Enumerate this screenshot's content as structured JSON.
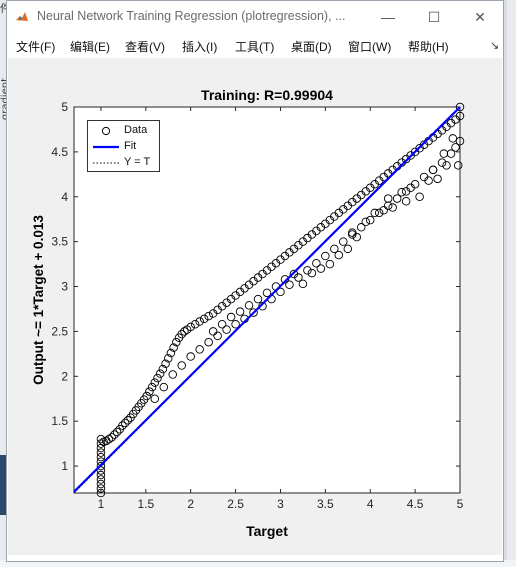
{
  "window": {
    "title": "Neural Network Training Regression (plotregression), ...",
    "controls": {
      "minimize": "—",
      "maximize": "☐",
      "close": "✕"
    }
  },
  "background": {
    "left_text": "gradient",
    "left_marker": "件"
  },
  "menu": {
    "items": [
      {
        "label": "文件(F)"
      },
      {
        "label": "编辑(E)"
      },
      {
        "label": "查看(V)"
      },
      {
        "label": "插入(I)"
      },
      {
        "label": "工具(T)"
      },
      {
        "label": "桌面(D)"
      },
      {
        "label": "窗口(W)"
      },
      {
        "label": "帮助(H)"
      }
    ],
    "overflow_icon": "↘"
  },
  "chart_data": {
    "type": "scatter",
    "title": "Training: R=0.99904",
    "xlabel": "Target",
    "ylabel": "Output ~= 1*Target + 0.013",
    "xlim": [
      0.7,
      5
    ],
    "ylim": [
      0.7,
      5
    ],
    "xticks": [
      "1",
      "1.5",
      "2",
      "2.5",
      "3",
      "3.5",
      "4",
      "4.5",
      "5"
    ],
    "yticks": [
      "1",
      "1.5",
      "2",
      "2.5",
      "3",
      "3.5",
      "4",
      "4.5",
      "5"
    ],
    "grid": false,
    "legend_position": "top-left",
    "legend": [
      "Data",
      "Fit",
      "Y = T"
    ],
    "colors": {
      "data": "#000000",
      "fit": "#0000ff",
      "identity": "#000000"
    },
    "fit": {
      "slope": 1,
      "intercept": 0.013
    },
    "series": [
      {
        "name": "Data",
        "points": [
          [
            1.0,
            0.7
          ],
          [
            1.0,
            0.75
          ],
          [
            1.0,
            0.8
          ],
          [
            1.0,
            0.85
          ],
          [
            1.0,
            0.9
          ],
          [
            1.0,
            0.95
          ],
          [
            1.0,
            1.0
          ],
          [
            1.0,
            1.05
          ],
          [
            1.0,
            1.1
          ],
          [
            1.0,
            1.15
          ],
          [
            1.0,
            1.2
          ],
          [
            1.0,
            1.25
          ],
          [
            1.0,
            1.3
          ],
          [
            1.03,
            1.27
          ],
          [
            1.06,
            1.28
          ],
          [
            1.09,
            1.3
          ],
          [
            1.12,
            1.32
          ],
          [
            1.15,
            1.35
          ],
          [
            1.18,
            1.38
          ],
          [
            1.21,
            1.41
          ],
          [
            1.24,
            1.45
          ],
          [
            1.27,
            1.48
          ],
          [
            1.3,
            1.51
          ],
          [
            1.33,
            1.54
          ],
          [
            1.36,
            1.58
          ],
          [
            1.39,
            1.62
          ],
          [
            1.42,
            1.66
          ],
          [
            1.45,
            1.7
          ],
          [
            1.48,
            1.74
          ],
          [
            1.51,
            1.78
          ],
          [
            1.54,
            1.83
          ],
          [
            1.57,
            1.88
          ],
          [
            1.6,
            1.93
          ],
          [
            1.63,
            1.98
          ],
          [
            1.66,
            2.03
          ],
          [
            1.69,
            2.08
          ],
          [
            1.72,
            2.14
          ],
          [
            1.75,
            2.2
          ],
          [
            1.78,
            2.26
          ],
          [
            1.81,
            2.32
          ],
          [
            1.84,
            2.38
          ],
          [
            1.87,
            2.43
          ],
          [
            1.9,
            2.47
          ],
          [
            1.93,
            2.5
          ],
          [
            1.96,
            2.52
          ],
          [
            2.0,
            2.55
          ],
          [
            2.05,
            2.58
          ],
          [
            2.1,
            2.61
          ],
          [
            2.15,
            2.64
          ],
          [
            2.2,
            2.67
          ],
          [
            2.25,
            2.7
          ],
          [
            2.3,
            2.74
          ],
          [
            2.35,
            2.78
          ],
          [
            2.4,
            2.82
          ],
          [
            2.45,
            2.86
          ],
          [
            2.5,
            2.9
          ],
          [
            2.55,
            2.94
          ],
          [
            2.6,
            2.98
          ],
          [
            2.65,
            3.02
          ],
          [
            2.7,
            3.06
          ],
          [
            2.75,
            3.1
          ],
          [
            2.8,
            3.14
          ],
          [
            2.85,
            3.18
          ],
          [
            2.9,
            3.22
          ],
          [
            2.95,
            3.26
          ],
          [
            3.0,
            3.3
          ],
          [
            3.05,
            3.34
          ],
          [
            3.1,
            3.38
          ],
          [
            3.15,
            3.42
          ],
          [
            3.2,
            3.46
          ],
          [
            3.25,
            3.5
          ],
          [
            3.3,
            3.54
          ],
          [
            3.35,
            3.58
          ],
          [
            3.4,
            3.62
          ],
          [
            3.45,
            3.66
          ],
          [
            3.5,
            3.7
          ],
          [
            3.55,
            3.74
          ],
          [
            3.6,
            3.78
          ],
          [
            3.65,
            3.82
          ],
          [
            3.7,
            3.86
          ],
          [
            3.75,
            3.9
          ],
          [
            3.8,
            3.94
          ],
          [
            3.85,
            3.98
          ],
          [
            3.9,
            4.02
          ],
          [
            3.95,
            4.06
          ],
          [
            4.0,
            4.1
          ],
          [
            4.05,
            4.14
          ],
          [
            4.1,
            4.18
          ],
          [
            4.15,
            4.22
          ],
          [
            4.2,
            4.26
          ],
          [
            4.25,
            4.3
          ],
          [
            4.3,
            4.34
          ],
          [
            4.35,
            4.38
          ],
          [
            4.4,
            4.42
          ],
          [
            4.45,
            4.46
          ],
          [
            4.5,
            4.5
          ],
          [
            4.55,
            4.54
          ],
          [
            4.6,
            4.58
          ],
          [
            4.65,
            4.62
          ],
          [
            4.7,
            4.66
          ],
          [
            4.75,
            4.7
          ],
          [
            4.8,
            4.74
          ],
          [
            4.85,
            4.78
          ],
          [
            4.9,
            4.82
          ],
          [
            4.95,
            4.86
          ],
          [
            5.0,
            4.9
          ],
          [
            1.6,
            1.75
          ],
          [
            1.7,
            1.88
          ],
          [
            1.8,
            2.02
          ],
          [
            1.9,
            2.12
          ],
          [
            2.0,
            2.22
          ],
          [
            2.1,
            2.3
          ],
          [
            2.2,
            2.38
          ],
          [
            2.3,
            2.45
          ],
          [
            2.4,
            2.52
          ],
          [
            2.5,
            2.58
          ],
          [
            2.6,
            2.64
          ],
          [
            2.7,
            2.71
          ],
          [
            2.8,
            2.78
          ],
          [
            2.9,
            2.86
          ],
          [
            3.0,
            2.94
          ],
          [
            3.1,
            3.02
          ],
          [
            3.2,
            3.1
          ],
          [
            3.3,
            3.18
          ],
          [
            3.4,
            3.26
          ],
          [
            3.5,
            3.34
          ],
          [
            3.6,
            3.42
          ],
          [
            3.7,
            3.5
          ],
          [
            3.8,
            3.58
          ],
          [
            3.9,
            3.66
          ],
          [
            4.0,
            3.74
          ],
          [
            4.1,
            3.82
          ],
          [
            4.2,
            3.9
          ],
          [
            4.3,
            3.98
          ],
          [
            4.4,
            4.06
          ],
          [
            4.5,
            4.14
          ],
          [
            4.6,
            4.22
          ],
          [
            4.7,
            4.3
          ],
          [
            4.8,
            4.38
          ],
          [
            4.9,
            4.48
          ],
          [
            5.0,
            4.62
          ],
          [
            2.25,
            2.5
          ],
          [
            2.35,
            2.58
          ],
          [
            2.45,
            2.66
          ],
          [
            2.55,
            2.72
          ],
          [
            2.65,
            2.79
          ],
          [
            2.75,
            2.86
          ],
          [
            2.85,
            2.93
          ],
          [
            2.95,
            3.0
          ],
          [
            3.05,
            3.08
          ],
          [
            3.15,
            3.14
          ],
          [
            3.25,
            3.03
          ],
          [
            3.35,
            3.15
          ],
          [
            3.45,
            3.2
          ],
          [
            3.55,
            3.25
          ],
          [
            3.65,
            3.35
          ],
          [
            3.75,
            3.42
          ],
          [
            3.8,
            3.6
          ],
          [
            3.85,
            3.55
          ],
          [
            3.95,
            3.72
          ],
          [
            4.05,
            3.82
          ],
          [
            4.15,
            3.85
          ],
          [
            4.2,
            3.98
          ],
          [
            4.25,
            3.88
          ],
          [
            4.35,
            4.05
          ],
          [
            4.4,
            3.95
          ],
          [
            4.45,
            4.1
          ],
          [
            4.55,
            4.0
          ],
          [
            4.65,
            4.18
          ],
          [
            4.7,
            4.3
          ],
          [
            4.75,
            4.2
          ],
          [
            4.85,
            4.35
          ],
          [
            4.95,
            4.55
          ],
          [
            4.98,
            4.35
          ],
          [
            5.0,
            5.0
          ],
          [
            4.92,
            4.65
          ],
          [
            4.82,
            4.48
          ]
        ]
      }
    ]
  }
}
